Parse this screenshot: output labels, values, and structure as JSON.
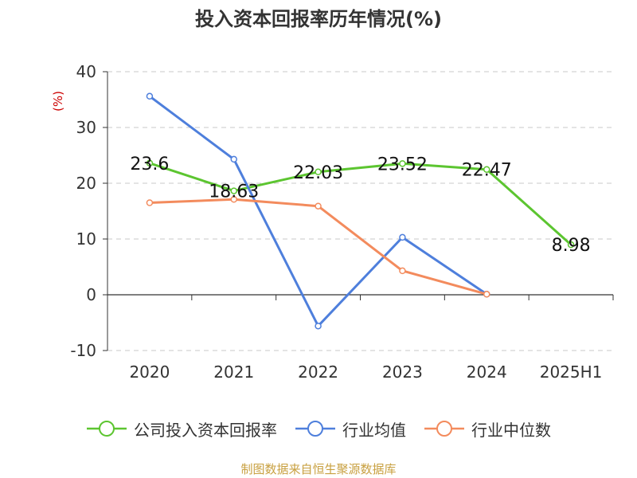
{
  "title": "投入资本回报率历年情况(%)",
  "source": "制图数据来自恒生聚源数据库",
  "colors": {
    "company": "#5cc530",
    "industry_avg": "#4e7fdc",
    "industry_median": "#f38b5d",
    "ylabel": "#cc0000"
  },
  "chart_data": {
    "type": "line",
    "categories": [
      "2020",
      "2021",
      "2022",
      "2023",
      "2024",
      "2025H1"
    ],
    "ylabel": "(%)",
    "ylim": [
      -10,
      40
    ],
    "yticks": [
      "40",
      "30",
      "20",
      "10",
      "0",
      "-10"
    ],
    "grid": true,
    "legend_position": "bottom",
    "series": [
      {
        "name": "公司投入资本回报率",
        "values": [
          23.6,
          18.63,
          22.03,
          23.52,
          22.47,
          8.98
        ],
        "labels": [
          "23.6",
          "18.63",
          "22.03",
          "23.52",
          "22.47",
          "8.98"
        ]
      },
      {
        "name": "行业均值",
        "values": [
          35.6,
          24.3,
          -5.6,
          10.3,
          0.1,
          null
        ]
      },
      {
        "name": "行业中位数",
        "values": [
          16.5,
          17.1,
          15.9,
          4.3,
          0.1,
          null
        ]
      }
    ]
  }
}
